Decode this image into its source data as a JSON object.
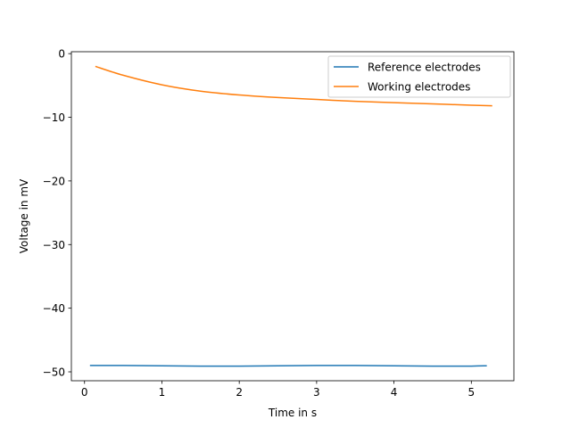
{
  "chart_data": {
    "type": "line",
    "title": "",
    "xlabel": "Time in s",
    "ylabel": "Voltage in mV",
    "xlim": [
      -0.17,
      5.55
    ],
    "ylim": [
      -51.4,
      0.3
    ],
    "xticks": [
      0,
      1,
      2,
      3,
      4,
      5
    ],
    "yticks": [
      0,
      -10,
      -20,
      -30,
      -40,
      -50
    ],
    "xtick_labels": [
      "0",
      "1",
      "2",
      "3",
      "4",
      "5"
    ],
    "ytick_labels": [
      "0",
      "−10",
      "−20",
      "−30",
      "−40",
      "−50"
    ],
    "grid": false,
    "legend": "top-right",
    "series": [
      {
        "name": "Reference electrodes",
        "color": "#1f77b4",
        "x": [
          0.07,
          0.5,
          1.0,
          1.5,
          2.0,
          2.5,
          3.0,
          3.5,
          4.0,
          4.5,
          5.0,
          5.2
        ],
        "y": [
          -49.0,
          -49.0,
          -49.05,
          -49.1,
          -49.1,
          -49.05,
          -49.0,
          -49.0,
          -49.05,
          -49.1,
          -49.1,
          -49.05
        ]
      },
      {
        "name": "Working electrodes",
        "color": "#ff7f0e",
        "x": [
          0.14,
          0.5,
          1.0,
          1.5,
          2.0,
          2.5,
          3.0,
          3.5,
          4.0,
          4.5,
          5.0,
          5.27
        ],
        "y": [
          -2.0,
          -3.4,
          -4.9,
          -5.9,
          -6.5,
          -6.9,
          -7.2,
          -7.5,
          -7.7,
          -7.9,
          -8.1,
          -8.2
        ]
      }
    ]
  }
}
